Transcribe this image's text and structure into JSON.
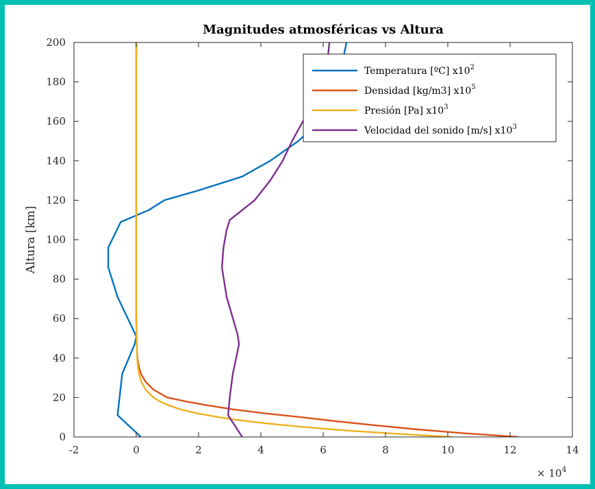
{
  "chart_data": {
    "type": "line",
    "title": "Magnitudes atmosféricas vs Altura",
    "xlabel": "",
    "ylabel": "Altura [km]",
    "xlim": [
      -2,
      14
    ],
    "ylim": [
      0,
      200
    ],
    "x_exponent_base": "× 10",
    "x_exponent_power": "4",
    "x_ticks": [
      -2,
      0,
      2,
      4,
      6,
      8,
      10,
      12,
      14
    ],
    "y_ticks": [
      0,
      20,
      40,
      60,
      80,
      100,
      120,
      140,
      160,
      180,
      200
    ],
    "grid": false,
    "legend_position": "top-right",
    "series": [
      {
        "name": "Temperatura [ºC] x10",
        "name_sup": "2",
        "color": "#0072bd",
        "points": [
          [
            0.15,
            0
          ],
          [
            -0.6,
            11
          ],
          [
            -0.45,
            32
          ],
          [
            -0.05,
            47
          ],
          [
            0.0,
            51
          ],
          [
            -0.6,
            71
          ],
          [
            -0.9,
            86
          ],
          [
            -0.9,
            96
          ],
          [
            -0.5,
            109
          ],
          [
            0.4,
            115
          ],
          [
            0.9,
            120
          ],
          [
            2.0,
            125
          ],
          [
            3.4,
            132
          ],
          [
            4.3,
            140
          ],
          [
            5.2,
            150
          ],
          [
            5.9,
            160
          ],
          [
            6.3,
            170
          ],
          [
            6.55,
            185
          ],
          [
            6.75,
            200
          ]
        ]
      },
      {
        "name": "Densidad [kg/m3] x10",
        "name_sup": "5",
        "color": "#d95319",
        "points": [
          [
            12.25,
            0
          ],
          [
            10.4,
            2
          ],
          [
            8.9,
            4
          ],
          [
            7.6,
            6
          ],
          [
            6.4,
            8
          ],
          [
            5.3,
            10
          ],
          [
            4.1,
            12
          ],
          [
            3.1,
            14
          ],
          [
            2.3,
            16
          ],
          [
            1.6,
            18
          ],
          [
            1.0,
            20
          ],
          [
            0.55,
            24
          ],
          [
            0.3,
            28
          ],
          [
            0.15,
            32
          ],
          [
            0.08,
            36
          ],
          [
            0.04,
            40
          ],
          [
            0.02,
            45
          ],
          [
            0.01,
            50
          ],
          [
            0.0,
            60
          ],
          [
            0.0,
            80
          ],
          [
            0.0,
            120
          ],
          [
            0.0,
            160
          ],
          [
            0.0,
            200
          ]
        ]
      },
      {
        "name": "Presión [Pa] x10",
        "name_sup": "3",
        "color": "#edb120",
        "points": [
          [
            10.13,
            0
          ],
          [
            8.99,
            1
          ],
          [
            7.95,
            2
          ],
          [
            7.01,
            3
          ],
          [
            6.17,
            4
          ],
          [
            5.4,
            5
          ],
          [
            4.72,
            6
          ],
          [
            4.11,
            7
          ],
          [
            3.56,
            8
          ],
          [
            3.08,
            9
          ],
          [
            2.65,
            10
          ],
          [
            1.94,
            12
          ],
          [
            1.42,
            14
          ],
          [
            1.04,
            16
          ],
          [
            0.76,
            18
          ],
          [
            0.55,
            20
          ],
          [
            0.3,
            24
          ],
          [
            0.16,
            28
          ],
          [
            0.09,
            32
          ],
          [
            0.05,
            36
          ],
          [
            0.03,
            40
          ],
          [
            0.01,
            48
          ],
          [
            0.0,
            60
          ],
          [
            0.0,
            80
          ],
          [
            0.0,
            120
          ],
          [
            0.0,
            160
          ],
          [
            0.0,
            200
          ]
        ]
      },
      {
        "name": "Velocidad del sonido [m/s] x10",
        "name_sup": "3",
        "color": "#7e2f8e",
        "points": [
          [
            3.4,
            0
          ],
          [
            2.95,
            11
          ],
          [
            3.0,
            20
          ],
          [
            3.1,
            32
          ],
          [
            3.3,
            47
          ],
          [
            3.25,
            52
          ],
          [
            2.9,
            71
          ],
          [
            2.75,
            86
          ],
          [
            2.8,
            96
          ],
          [
            2.9,
            105
          ],
          [
            3.0,
            110
          ],
          [
            3.4,
            115
          ],
          [
            3.8,
            120
          ],
          [
            4.3,
            130
          ],
          [
            4.7,
            140
          ],
          [
            5.0,
            150
          ],
          [
            5.35,
            160
          ],
          [
            5.8,
            170
          ],
          [
            6.1,
            185
          ],
          [
            6.2,
            200
          ]
        ]
      }
    ]
  }
}
